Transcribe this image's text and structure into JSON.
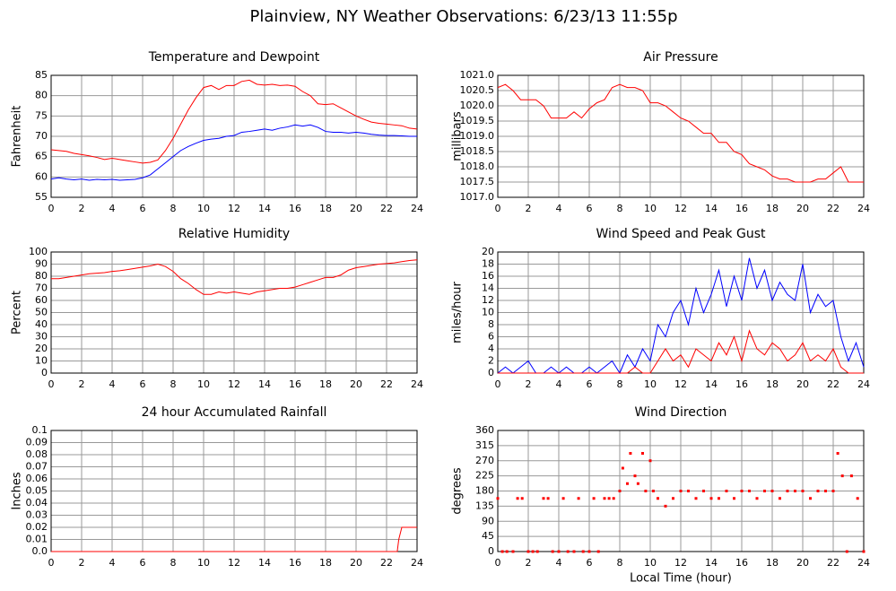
{
  "title": "Plainview, NY Weather Observations: 6/23/13 11:55p",
  "chart_data": [
    {
      "type": "line",
      "title": "Temperature and Dewpoint",
      "y_label": "Fahrenheit",
      "x": [
        0,
        0.5,
        1,
        1.5,
        2,
        2.5,
        3,
        3.5,
        4,
        4.5,
        5,
        5.5,
        6,
        6.5,
        7,
        7.5,
        8,
        8.5,
        9,
        9.5,
        10,
        10.5,
        11,
        11.5,
        12,
        12.5,
        13,
        13.5,
        14,
        14.5,
        15,
        15.5,
        16,
        16.5,
        17,
        17.5,
        18,
        18.5,
        19,
        19.5,
        20,
        20.5,
        21,
        21.5,
        22,
        22.5,
        23,
        23.5,
        24
      ],
      "series": [
        {
          "color": "#ff0000",
          "values": [
            66.7,
            66.5,
            66.3,
            65.8,
            65.5,
            65.2,
            64.8,
            64.3,
            64.6,
            64.3,
            64,
            63.7,
            63.4,
            63.6,
            64.2,
            66.5,
            69.5,
            73,
            76.5,
            79.5,
            82,
            82.5,
            81.5,
            82.5,
            82.5,
            83.5,
            83.8,
            82.8,
            82.6,
            82.8,
            82.5,
            82.6,
            82.3,
            81,
            80,
            78,
            77.8,
            78,
            77,
            76,
            75,
            74.2,
            73.5,
            73.2,
            73,
            72.8,
            72.6,
            72,
            71.8
          ]
        },
        {
          "color": "#0000ff",
          "values": [
            59.5,
            59.8,
            59.5,
            59.3,
            59.5,
            59.2,
            59.4,
            59.3,
            59.4,
            59.2,
            59.3,
            59.4,
            59.8,
            60.5,
            62,
            63.5,
            65,
            66.5,
            67.5,
            68.3,
            69,
            69.3,
            69.5,
            70,
            70.2,
            71,
            71.2,
            71.5,
            71.8,
            71.5,
            72,
            72.3,
            72.8,
            72.5,
            72.8,
            72.2,
            71.2,
            71,
            71,
            70.8,
            71,
            70.8,
            70.5,
            70.3,
            70.2,
            70.2,
            70.1,
            70,
            70
          ]
        }
      ],
      "xlim": [
        0,
        24
      ],
      "xticks": [
        0,
        2,
        4,
        6,
        8,
        10,
        12,
        14,
        16,
        18,
        20,
        22,
        24
      ],
      "ylim": [
        55,
        85
      ],
      "yticks": [
        55,
        60,
        65,
        70,
        75,
        80,
        85
      ],
      "grid": true
    },
    {
      "type": "line",
      "title": "Air Pressure",
      "y_label": "millibars",
      "x": [
        0,
        0.5,
        1,
        1.5,
        2,
        2.5,
        3,
        3.5,
        4,
        4.5,
        5,
        5.5,
        6,
        6.5,
        7,
        7.5,
        8,
        8.5,
        9,
        9.5,
        10,
        10.5,
        11,
        11.5,
        12,
        12.5,
        13,
        13.5,
        14,
        14.5,
        15,
        15.5,
        16,
        16.5,
        17,
        17.5,
        18,
        18.5,
        19,
        19.5,
        20,
        20.5,
        21,
        21.5,
        22,
        22.5,
        23,
        23.5,
        24
      ],
      "series": [
        {
          "color": "#ff0000",
          "values": [
            1020.6,
            1020.7,
            1020.5,
            1020.2,
            1020.2,
            1020.2,
            1020.0,
            1019.6,
            1019.6,
            1019.6,
            1019.8,
            1019.6,
            1019.9,
            1020.1,
            1020.2,
            1020.6,
            1020.7,
            1020.6,
            1020.6,
            1020.5,
            1020.1,
            1020.1,
            1020.0,
            1019.8,
            1019.6,
            1019.5,
            1019.3,
            1019.1,
            1019.1,
            1018.8,
            1018.8,
            1018.5,
            1018.4,
            1018.1,
            1018,
            1017.9,
            1017.7,
            1017.6,
            1017.6,
            1017.5,
            1017.5,
            1017.5,
            1017.6,
            1017.6,
            1017.8,
            1018,
            1017.5,
            1017.5,
            1017.5
          ]
        }
      ],
      "xlim": [
        0,
        24
      ],
      "xticks": [
        0,
        2,
        4,
        6,
        8,
        10,
        12,
        14,
        16,
        18,
        20,
        22,
        24
      ],
      "ylim": [
        1017,
        1021
      ],
      "yticks": [
        {
          "value": 1017,
          "label": "1017.0"
        },
        1017.5,
        {
          "value": 1018,
          "label": "1018.0"
        },
        1018.5,
        {
          "value": 1019,
          "label": "1019.0"
        },
        1019.5,
        {
          "value": 1020,
          "label": "1020.0"
        },
        1020.5,
        {
          "value": 1021,
          "label": "1021.0"
        }
      ],
      "grid": true
    },
    {
      "type": "line",
      "title": "Relative Humidity",
      "y_label": "Percent",
      "x": [
        0,
        0.5,
        1,
        1.5,
        2,
        2.5,
        3,
        3.5,
        4,
        4.5,
        5,
        5.5,
        6,
        6.5,
        7,
        7.5,
        8,
        8.5,
        9,
        9.5,
        10,
        10.5,
        11,
        11.5,
        12,
        12.5,
        13,
        13.5,
        14,
        14.5,
        15,
        15.5,
        16,
        16.5,
        17,
        17.5,
        18,
        18.5,
        19,
        19.5,
        20,
        20.5,
        21,
        21.5,
        22,
        22.5,
        23,
        23.5,
        24
      ],
      "series": [
        {
          "color": "#ff0000",
          "values": [
            78,
            78,
            79,
            80,
            81,
            82,
            82.5,
            83,
            84,
            84.5,
            85.5,
            86.5,
            87.5,
            88.5,
            90,
            88,
            84,
            78,
            74,
            69,
            65,
            65,
            67,
            66,
            67,
            66,
            65,
            67,
            68,
            69,
            70,
            70,
            71,
            73,
            75,
            77,
            79,
            79,
            81,
            85,
            87,
            88,
            89,
            90,
            90.5,
            91,
            92,
            93,
            93.5
          ]
        }
      ],
      "xlim": [
        0,
        24
      ],
      "xticks": [
        0,
        2,
        4,
        6,
        8,
        10,
        12,
        14,
        16,
        18,
        20,
        22,
        24
      ],
      "ylim": [
        0,
        100
      ],
      "yticks": [
        0,
        10,
        20,
        30,
        40,
        50,
        60,
        70,
        80,
        90,
        100
      ],
      "grid": true
    },
    {
      "type": "line",
      "title": "Wind Speed and Peak Gust",
      "y_label": "miles/hour",
      "x": [
        0,
        0.5,
        1,
        1.5,
        2,
        2.5,
        3,
        3.5,
        4,
        4.5,
        5,
        5.5,
        6,
        6.5,
        7,
        7.5,
        8,
        8.5,
        9,
        9.5,
        10,
        10.5,
        11,
        11.5,
        12,
        12.5,
        13,
        13.5,
        14,
        14.5,
        15,
        15.5,
        16,
        16.5,
        17,
        17.5,
        18,
        18.5,
        19,
        19.5,
        20,
        20.5,
        21,
        21.5,
        22,
        22.5,
        23,
        23.5,
        24
      ],
      "series": [
        {
          "color": "#0000ff",
          "values": [
            0,
            1,
            0,
            1,
            2,
            0,
            0,
            1,
            0,
            1,
            0,
            0,
            1,
            0,
            1,
            2,
            0,
            3,
            1,
            4,
            2,
            8,
            6,
            10,
            12,
            8,
            14,
            10,
            13,
            17,
            11,
            16,
            12,
            19,
            14,
            17,
            12,
            15,
            13,
            12,
            18,
            10,
            13,
            11,
            12,
            6,
            2,
            5,
            1
          ]
        },
        {
          "color": "#ff0000",
          "values": [
            0,
            0,
            0,
            0,
            0,
            0,
            0,
            0,
            0,
            0,
            0,
            0,
            0,
            0,
            0,
            0,
            0,
            0,
            1,
            0,
            0,
            2,
            4,
            2,
            3,
            1,
            4,
            3,
            2,
            5,
            3,
            6,
            2,
            7,
            4,
            3,
            5,
            4,
            2,
            3,
            5,
            2,
            3,
            2,
            4,
            1,
            0,
            0,
            0
          ]
        }
      ],
      "xlim": [
        0,
        24
      ],
      "xticks": [
        0,
        2,
        4,
        6,
        8,
        10,
        12,
        14,
        16,
        18,
        20,
        22,
        24
      ],
      "ylim": [
        0,
        20
      ],
      "yticks": [
        0,
        2,
        4,
        6,
        8,
        10,
        12,
        14,
        16,
        18,
        20
      ],
      "grid": true
    },
    {
      "type": "line",
      "title": "24 hour Accumulated Rainfall",
      "y_label": "Inches",
      "x": [
        0,
        22.7,
        22.8,
        23,
        24
      ],
      "series": [
        {
          "color": "#ff0000",
          "values": [
            0,
            0,
            0.01,
            0.02,
            0.02
          ]
        }
      ],
      "xlim": [
        0,
        24
      ],
      "xticks": [
        0,
        2,
        4,
        6,
        8,
        10,
        12,
        14,
        16,
        18,
        20,
        22,
        24
      ],
      "ylim": [
        0,
        0.1
      ],
      "yticks": [
        {
          "value": 0,
          "label": "0.0"
        },
        0.01,
        0.02,
        0.03,
        0.04,
        0.05,
        0.06,
        0.07,
        0.08,
        0.09,
        0.1
      ],
      "grid": true
    },
    {
      "type": "scatter",
      "title": "Wind Direction",
      "y_label": "degrees",
      "x_label": "Local Time (hour)",
      "x": [
        0,
        0.3,
        0.6,
        1,
        1.3,
        1.6,
        2,
        2.3,
        2.6,
        3,
        3.3,
        3.6,
        4,
        4.3,
        4.6,
        5,
        5.3,
        5.6,
        6,
        6.3,
        6.6,
        7,
        7.3,
        7.6,
        8,
        8.2,
        8.5,
        8.7,
        9,
        9.2,
        9.5,
        9.7,
        10,
        10.2,
        10.5,
        11,
        11.5,
        12,
        12.5,
        13,
        13.5,
        14,
        14.5,
        15,
        15.5,
        16,
        16.5,
        17,
        17.5,
        18,
        18.5,
        19,
        19.5,
        20,
        20.5,
        21,
        21.5,
        22,
        22.3,
        22.6,
        22.9,
        23.2,
        23.6,
        24
      ],
      "series": [
        {
          "color": "#ff0000",
          "values": [
            158,
            0,
            0,
            0,
            158,
            158,
            0,
            0,
            0,
            158,
            158,
            0,
            0,
            158,
            0,
            0,
            158,
            0,
            0,
            158,
            0,
            158,
            158,
            158,
            180,
            248,
            202,
            292,
            225,
            202,
            292,
            180,
            270,
            180,
            158,
            135,
            158,
            180,
            180,
            158,
            180,
            158,
            158,
            180,
            158,
            180,
            180,
            158,
            180,
            180,
            158,
            180,
            180,
            180,
            158,
            180,
            180,
            180,
            292,
            225,
            0,
            225,
            158,
            0
          ]
        }
      ],
      "xlim": [
        0,
        24
      ],
      "xticks": [
        0,
        2,
        4,
        6,
        8,
        10,
        12,
        14,
        16,
        18,
        20,
        22,
        24
      ],
      "ylim": [
        0,
        360
      ],
      "yticks": [
        0,
        45,
        90,
        135,
        180,
        225,
        270,
        315,
        360
      ],
      "grid": true
    }
  ]
}
